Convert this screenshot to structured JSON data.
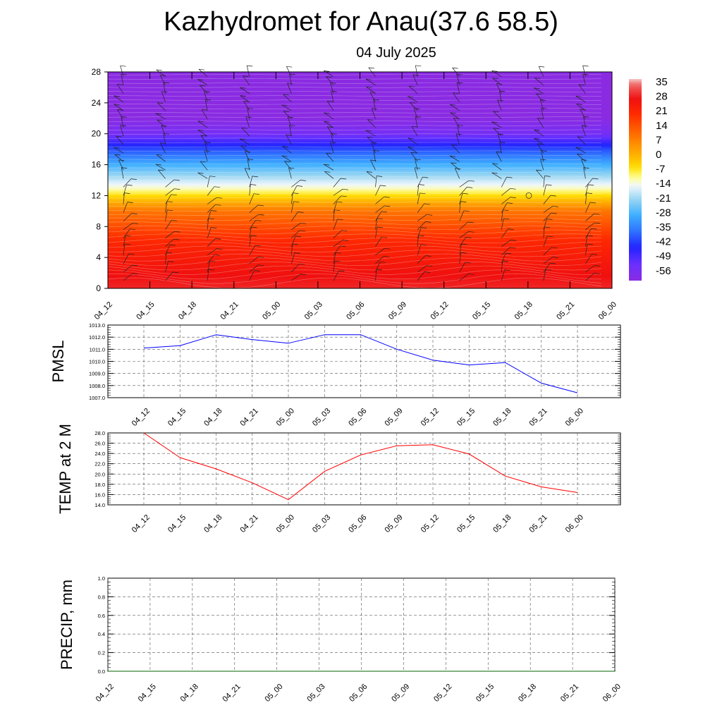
{
  "title": "Kazhydromet for Anau(37.6 58.5)",
  "subtitle": "04 July 2025",
  "time_labels": [
    "04_12",
    "04_15",
    "04_18",
    "04_21",
    "05_00",
    "05_03",
    "05_06",
    "05_09",
    "05_12",
    "05_15",
    "05_18",
    "05_21",
    "06_00"
  ],
  "colors": {
    "pmsl_line": "#0000ff",
    "temp_line": "#ff0000",
    "precip_line": "#006400",
    "grid": "#000000"
  },
  "chart_data": [
    {
      "id": "cross_section",
      "type": "heatmap",
      "title": "",
      "xlabel": "",
      "ylabel": "",
      "ylim": [
        0,
        28
      ],
      "y_ticks": [
        0,
        4,
        8,
        12,
        16,
        20,
        24,
        28
      ],
      "categories": [
        "04_12",
        "04_15",
        "04_18",
        "04_21",
        "05_00",
        "05_03",
        "05_06",
        "05_09",
        "05_12",
        "05_15",
        "05_18",
        "05_21",
        "06_00"
      ],
      "colorbar_labels": [
        "35",
        "28",
        "21",
        "14",
        "7",
        "0",
        "-7",
        "-14",
        "-21",
        "-28",
        "-35",
        "-42",
        "-49",
        "-56"
      ],
      "colorbar_range": [
        -60,
        38
      ],
      "description_levels": [
        {
          "height": 0,
          "temp": 30
        },
        {
          "height": 6,
          "temp": 22
        },
        {
          "height": 10,
          "temp": 10
        },
        {
          "height": 13,
          "temp": -12
        },
        {
          "height": 16,
          "temp": -28
        },
        {
          "height": 18,
          "temp": -40
        },
        {
          "height": 20,
          "temp": -55
        },
        {
          "height": 22,
          "temp": -60
        },
        {
          "height": 28,
          "temp": -60
        }
      ]
    },
    {
      "id": "pmsl",
      "type": "line",
      "ylabel": "PMSL",
      "ylim": [
        1007.0,
        1013.0
      ],
      "y_ticks": [
        "1007.0",
        "1008.0",
        "1009.0",
        "1010.0",
        "1011.0",
        "1012.0",
        "1013.0"
      ],
      "categories": [
        "04_12",
        "04_15",
        "04_18",
        "04_21",
        "05_00",
        "05_03",
        "05_06",
        "05_09",
        "05_12",
        "05_15",
        "05_18",
        "05_21",
        "06_00"
      ],
      "values": [
        1011.1,
        1011.3,
        1012.2,
        1011.8,
        1011.5,
        1012.2,
        1012.2,
        1011.0,
        1010.1,
        1009.7,
        1009.9,
        1008.2,
        1007.4
      ]
    },
    {
      "id": "temp",
      "type": "line",
      "ylabel": "TEMP at 2 M",
      "ylim": [
        14.0,
        28.0
      ],
      "y_ticks": [
        "14.0",
        "16.0",
        "18.0",
        "20.0",
        "22.0",
        "24.0",
        "26.0",
        "28.0"
      ],
      "categories": [
        "04_12",
        "04_15",
        "04_18",
        "04_21",
        "05_00",
        "05_03",
        "05_06",
        "05_09",
        "05_12",
        "05_15",
        "05_18",
        "05_21",
        "06_00"
      ],
      "values": [
        28.0,
        23.2,
        21.0,
        18.3,
        15.0,
        20.5,
        23.7,
        25.5,
        25.7,
        23.9,
        19.6,
        17.5,
        16.4
      ]
    },
    {
      "id": "precip",
      "type": "line",
      "ylabel": "PRECIP, mm",
      "ylim": [
        0.0,
        1.0
      ],
      "y_ticks": [
        "0.0",
        "0.2",
        "0.4",
        "0.6",
        "0.8",
        "1.0"
      ],
      "categories": [
        "04_12",
        "04_15",
        "04_18",
        "04_21",
        "05_00",
        "05_03",
        "05_06",
        "05_09",
        "05_12",
        "05_15",
        "05_18",
        "05_21",
        "06_00"
      ],
      "values": [
        0,
        0,
        0,
        0,
        0,
        0,
        0,
        0,
        0,
        0,
        0,
        0,
        0
      ]
    }
  ]
}
